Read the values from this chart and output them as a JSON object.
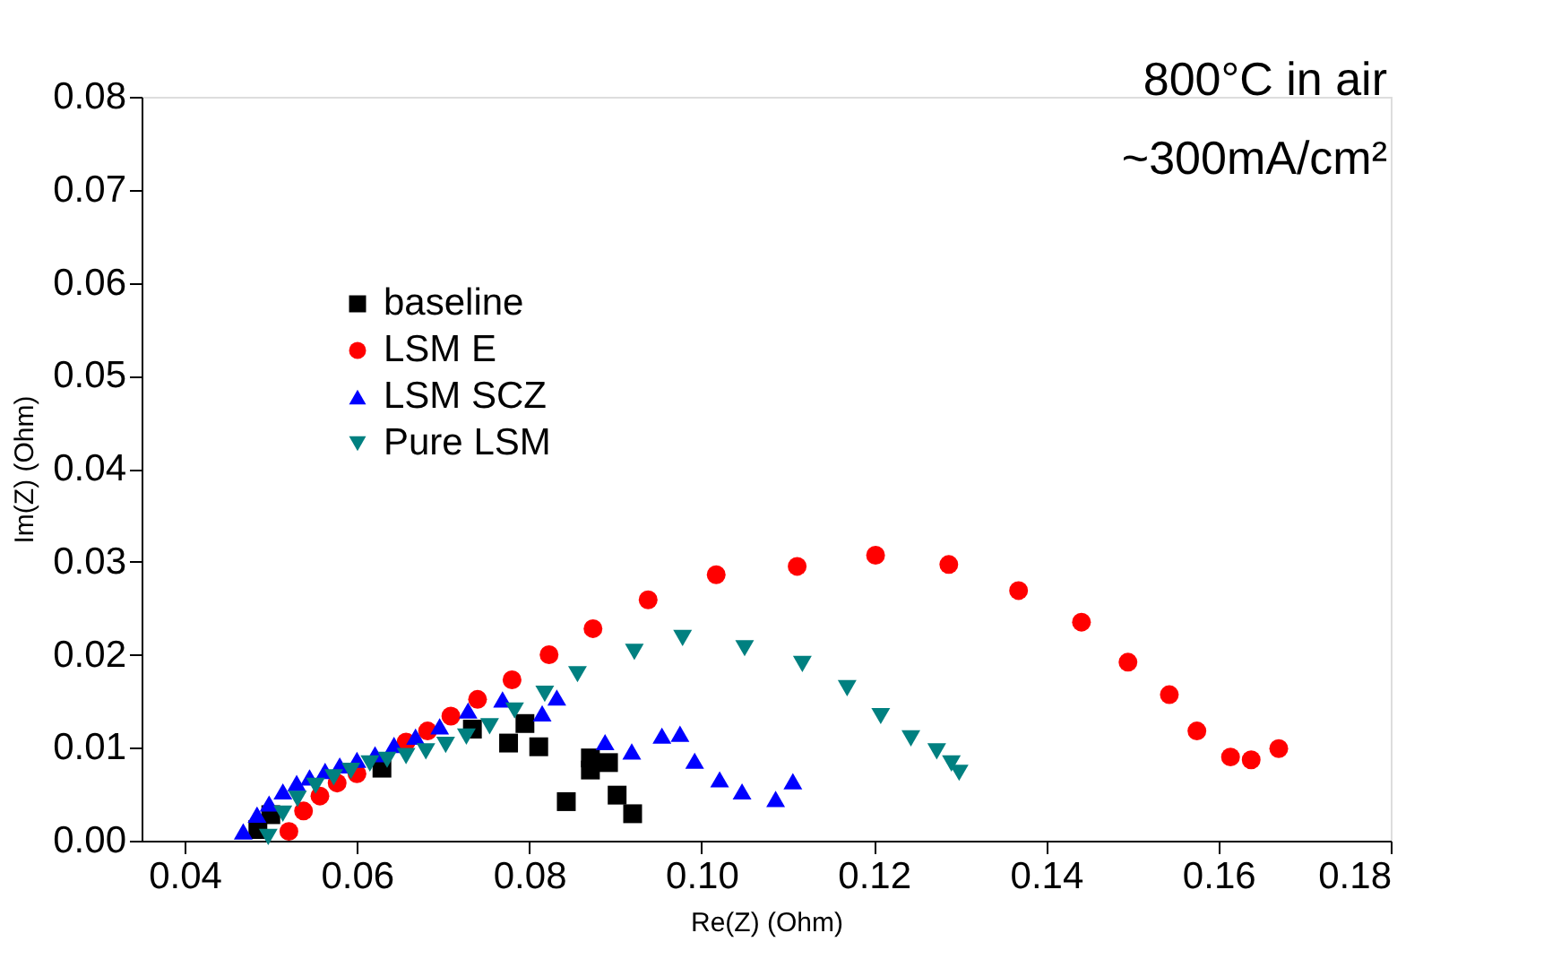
{
  "chart_data": {
    "type": "scatter",
    "xlabel": "Re(Z) (Ohm)",
    "ylabel": "Im(Z) (Ohm)",
    "annotations": [
      "800°C in air",
      "~300mA/cm²"
    ],
    "xlim": [
      0.035,
      0.18
    ],
    "ylim": [
      0,
      0.08
    ],
    "xticks": [
      {
        "value": 0.04,
        "label": "0.04"
      },
      {
        "value": 0.06,
        "label": "0.06"
      },
      {
        "value": 0.08,
        "label": "0.08"
      },
      {
        "value": 0.1,
        "label": "0.10"
      },
      {
        "value": 0.12,
        "label": "0.12"
      },
      {
        "value": 0.14,
        "label": "0.14"
      },
      {
        "value": 0.16,
        "label": "0.16"
      },
      {
        "value": 0.18,
        "label": "0.18"
      }
    ],
    "yticks": [
      {
        "value": 0,
        "label": "0.00"
      },
      {
        "value": 0.01,
        "label": "0.01"
      },
      {
        "value": 0.02,
        "label": "0.02"
      },
      {
        "value": 0.03,
        "label": "0.03"
      },
      {
        "value": 0.04,
        "label": "0.04"
      },
      {
        "value": 0.05,
        "label": "0.05"
      },
      {
        "value": 0.06,
        "label": "0.06"
      },
      {
        "value": 0.07,
        "label": "0.07"
      },
      {
        "value": 0.08,
        "label": "0.08"
      }
    ],
    "grid": false,
    "legend": "top left",
    "series": [
      {
        "name": "baseline",
        "color": "#000000",
        "marker": "square",
        "x": [
          0.0485,
          0.05,
          0.0629,
          0.0734,
          0.0776,
          0.0795,
          0.0811,
          0.0843,
          0.0871,
          0.0871,
          0.0892,
          0.0902,
          0.092
        ],
        "values": [
          0.0012,
          0.0028,
          0.0078,
          0.012,
          0.0105,
          0.0126,
          0.0101,
          0.0042,
          0.0089,
          0.0076,
          0.0084,
          0.0049,
          0.0029
        ]
      },
      {
        "name": "LSM E",
        "color": "#ff0000",
        "marker": "circle",
        "x": [
          0.0521,
          0.0538,
          0.0557,
          0.0577,
          0.06,
          0.0657,
          0.0682,
          0.0709,
          0.074,
          0.078,
          0.0823,
          0.0874,
          0.0938,
          0.1017,
          0.1111,
          0.1202,
          0.1287,
          0.1368,
          0.1441,
          0.1495,
          0.1543,
          0.1575,
          0.1614,
          0.1638,
          0.167
        ],
        "values": [
          0.001,
          0.0032,
          0.0048,
          0.0062,
          0.0072,
          0.0106,
          0.0118,
          0.0134,
          0.0152,
          0.0173,
          0.02,
          0.0228,
          0.0259,
          0.0286,
          0.0295,
          0.0307,
          0.0297,
          0.0269,
          0.0235,
          0.0192,
          0.0157,
          0.0118,
          0.009,
          0.0087,
          0.0099
        ]
      },
      {
        "name": "LSM SCZ",
        "color": "#0000ff",
        "marker": "triangle",
        "x": [
          0.0468,
          0.0484,
          0.0498,
          0.0514,
          0.053,
          0.0545,
          0.0563,
          0.058,
          0.06,
          0.0621,
          0.0643,
          0.0668,
          0.0696,
          0.0729,
          0.0769,
          0.0815,
          0.0832,
          0.0888,
          0.0919,
          0.0954,
          0.0975,
          0.0992,
          0.1021,
          0.1047,
          0.1086,
          0.1106
        ],
        "values": [
          0.001,
          0.0028,
          0.004,
          0.0053,
          0.0062,
          0.0068,
          0.0075,
          0.0081,
          0.0087,
          0.0093,
          0.0103,
          0.0112,
          0.0123,
          0.014,
          0.0152,
          0.0137,
          0.0154,
          0.0106,
          0.0096,
          0.0113,
          0.0115,
          0.0086,
          0.0066,
          0.0053,
          0.0045,
          0.0064
        ]
      },
      {
        "name": "Pure LSM",
        "color": "#008080",
        "marker": "triangle-down",
        "x": [
          0.0497,
          0.0514,
          0.0531,
          0.0552,
          0.0573,
          0.0593,
          0.0615,
          0.0635,
          0.0657,
          0.068,
          0.0703,
          0.0727,
          0.0754,
          0.0783,
          0.0818,
          0.0856,
          0.0922,
          0.0978,
          0.105,
          0.1117,
          0.1169,
          0.1208,
          0.1243,
          0.1273,
          0.129,
          0.1299
        ],
        "values": [
          0.0004,
          0.0029,
          0.0045,
          0.0059,
          0.0068,
          0.0075,
          0.0083,
          0.0087,
          0.0091,
          0.0096,
          0.0103,
          0.0112,
          0.0123,
          0.014,
          0.0158,
          0.0179,
          0.0203,
          0.0218,
          0.0207,
          0.019,
          0.0164,
          0.0134,
          0.011,
          0.0096,
          0.0083,
          0.0073
        ]
      }
    ]
  }
}
